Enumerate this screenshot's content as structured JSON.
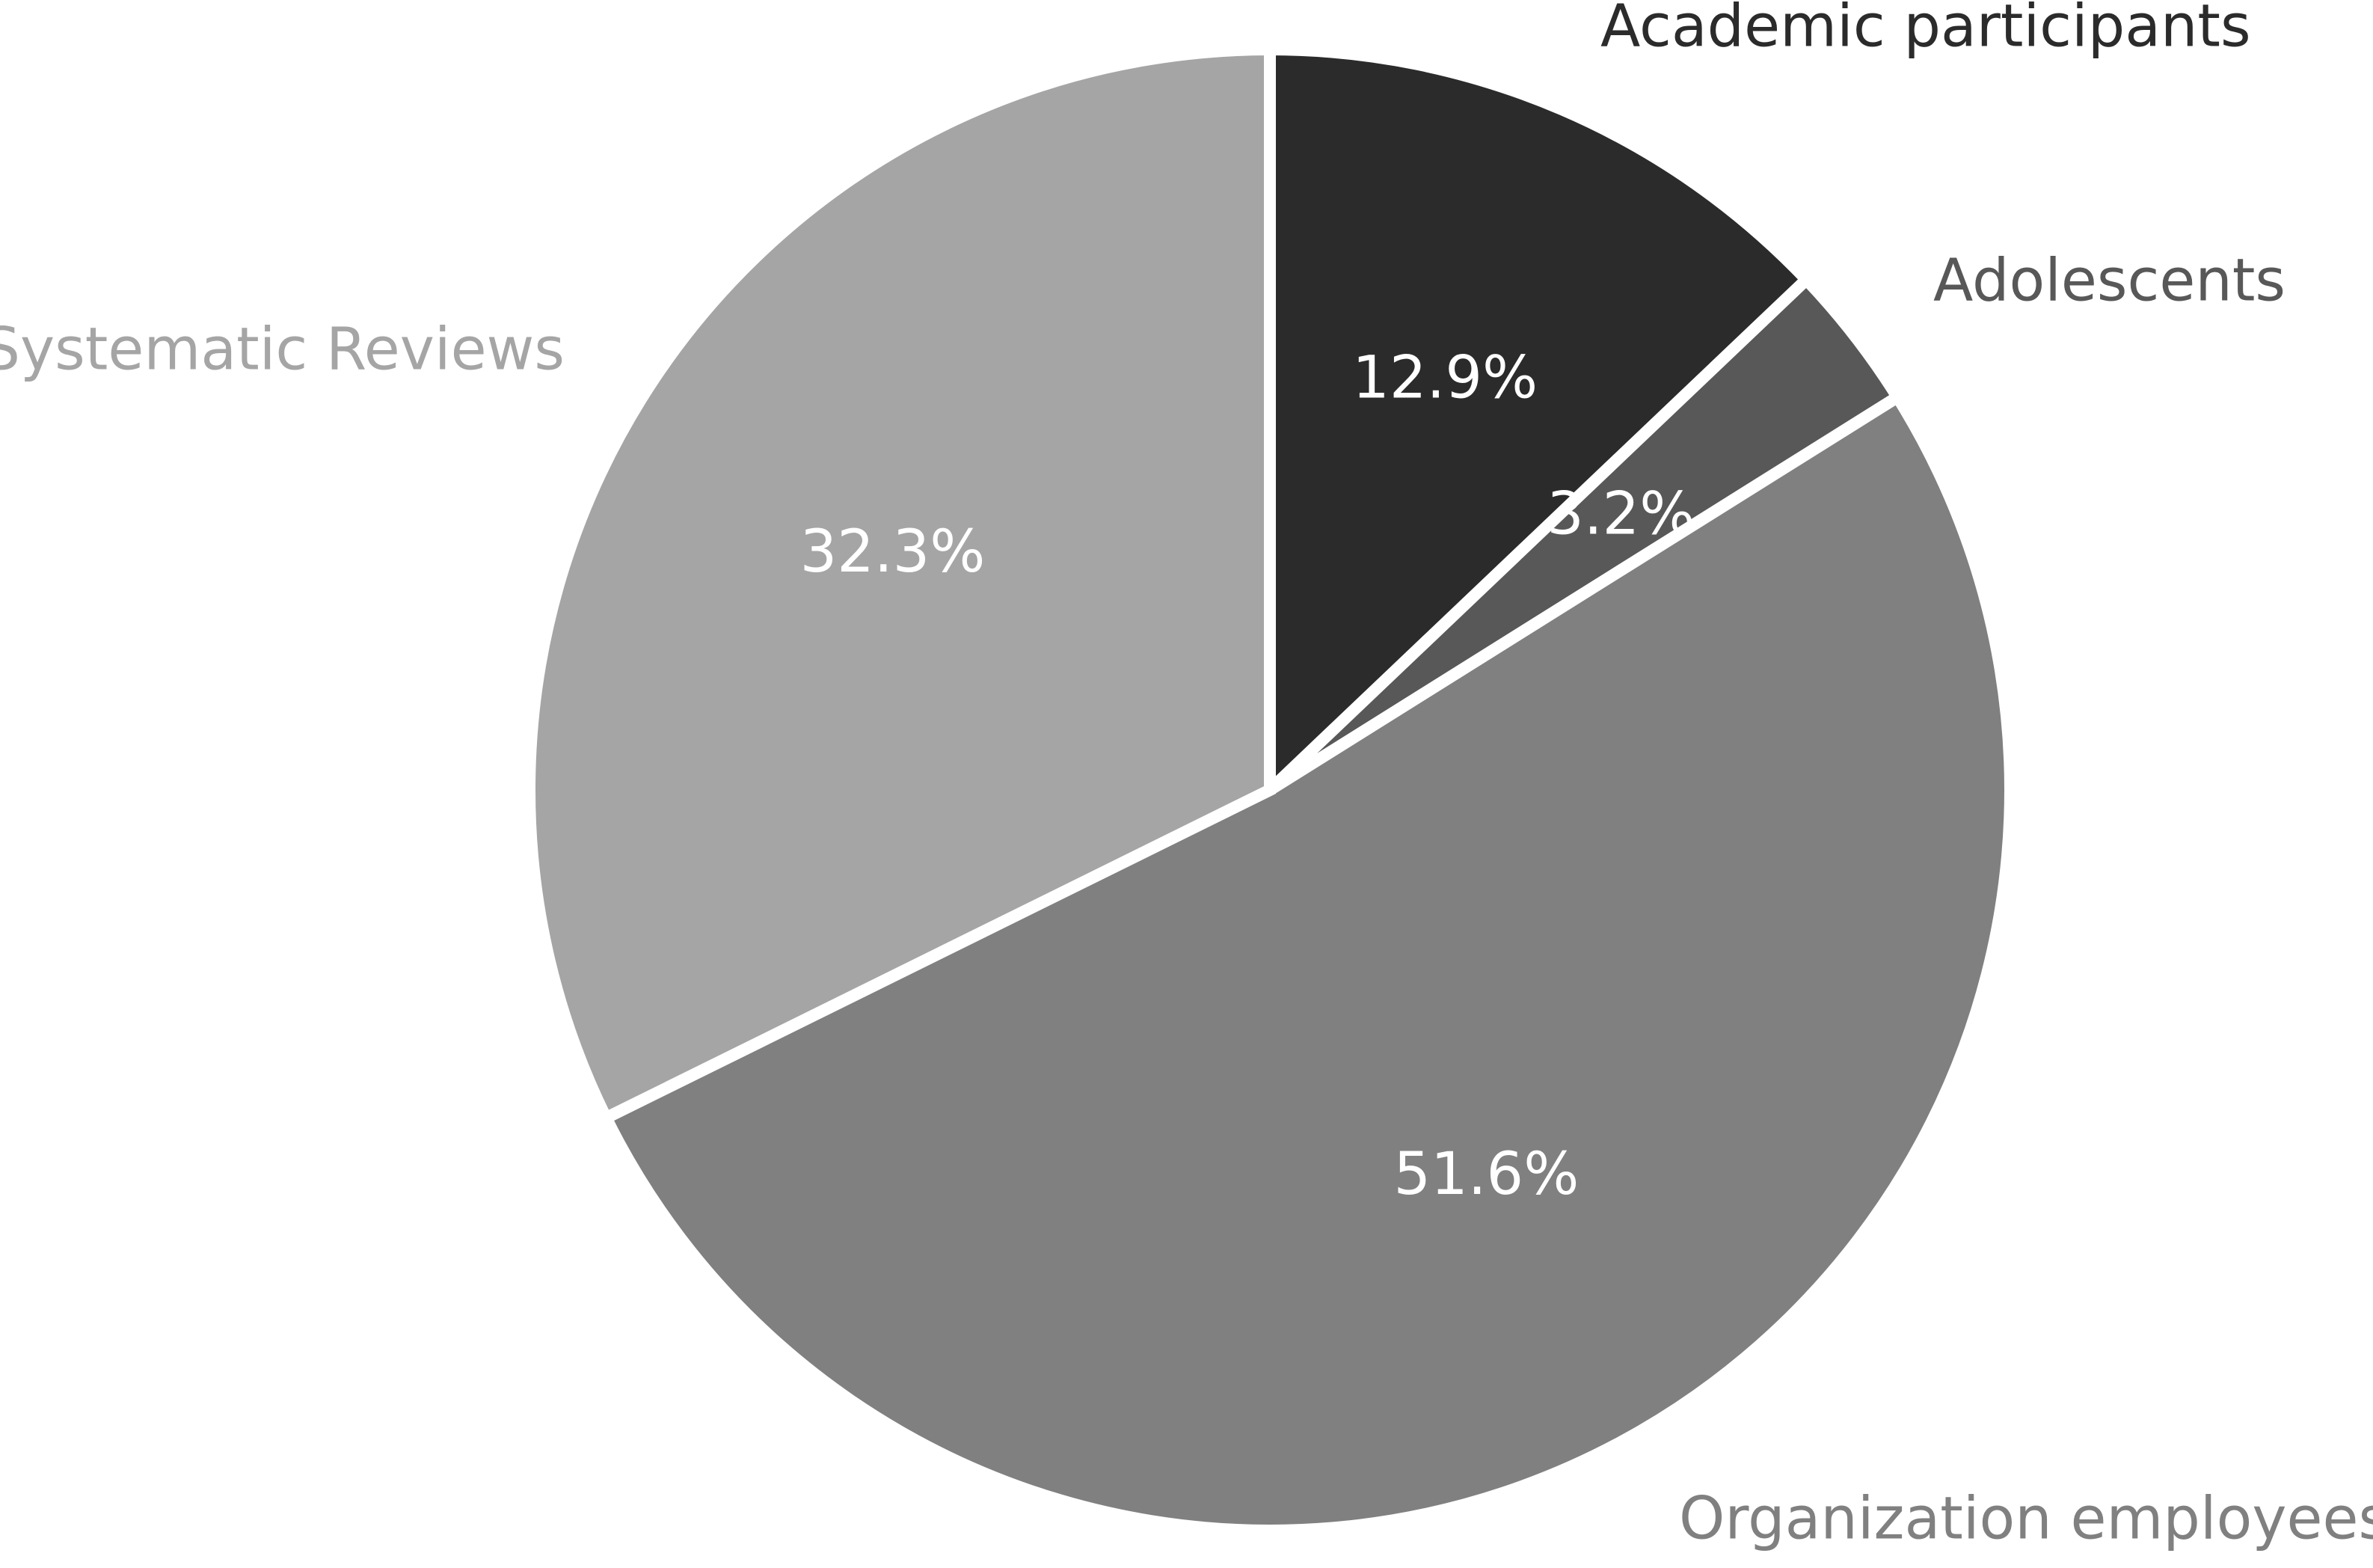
{
  "chart_data": {
    "type": "pie",
    "title": "",
    "categories": [
      "Academic participants",
      "Adolescents",
      "Organization employees",
      "Systematic Reviews"
    ],
    "values": [
      12.9,
      3.2,
      51.6,
      32.3
    ],
    "value_labels": [
      "12.9%",
      "3.2%",
      "51.6%",
      "32.3%"
    ],
    "colors": [
      "#2b2b2b",
      "#585858",
      "#808080",
      "#a5a5a5"
    ],
    "label_colors": [
      "#2b2b2b",
      "#585858",
      "#808080",
      "#a5a5a5"
    ],
    "start_angle_deg": 90,
    "direction": "clockwise",
    "legend": "none"
  }
}
